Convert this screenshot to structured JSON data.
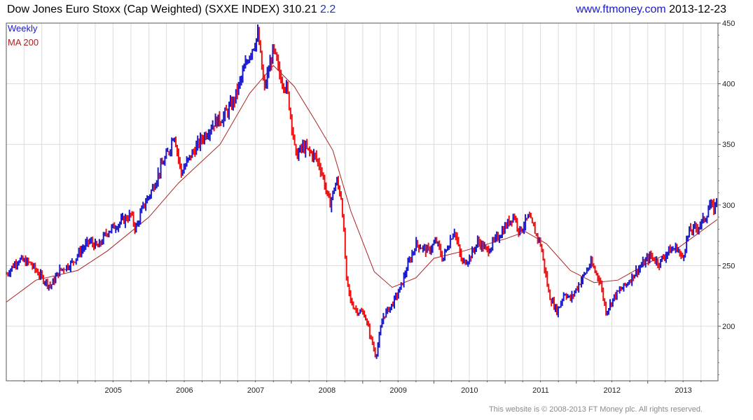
{
  "header": {
    "title": "Dow Jones Euro Stoxx (Cap Weighted)",
    "ticker": "(SXXE INDEX)",
    "last_price": "310.21",
    "change": "2.2",
    "site": "www.ftmoney.com",
    "date": "2013-12-23"
  },
  "footer": {
    "copyright": "This website is © 2008-2013 FT Money plc. All rights reserved."
  },
  "chart_data": {
    "type": "line",
    "title": "Dow Jones Euro Stoxx (Cap Weighted)  (SXXE INDEX) 310.21 2.2",
    "xlabel": "",
    "ylabel": "",
    "legend_position": "top-left",
    "grid": true,
    "x_tick_labels": [
      "2005",
      "2006",
      "2007",
      "2008",
      "2009",
      "2010",
      "2011",
      "2012",
      "2013"
    ],
    "y_tick_labels": [
      "200",
      "250",
      "300",
      "350",
      "400",
      "450"
    ],
    "ylim": [
      155,
      450
    ],
    "xlim": [
      "2004-01-01",
      "2013-12-27"
    ],
    "colors": {
      "up": "#1a1acc",
      "down": "#ee1111",
      "ma": "#aa2222",
      "grid": "#dcdcdc"
    },
    "series": [
      {
        "name": "Weekly",
        "x": [
          "2004-01-02",
          "2004-03-01",
          "2004-05-01",
          "2004-07-01",
          "2004-08-15",
          "2004-10-01",
          "2004-12-01",
          "2005-01-15",
          "2005-03-01",
          "2005-04-15",
          "2005-06-01",
          "2005-08-01",
          "2005-10-01",
          "2005-10-25",
          "2005-12-01",
          "2006-01-15",
          "2006-03-01",
          "2006-04-15",
          "2006-05-10",
          "2006-06-15",
          "2006-08-01",
          "2006-10-01",
          "2006-12-01",
          "2007-01-15",
          "2007-03-10",
          "2007-04-15",
          "2007-06-01",
          "2007-07-15",
          "2007-08-15",
          "2007-10-01",
          "2007-11-01",
          "2007-12-10",
          "2008-01-10",
          "2008-01-22",
          "2008-03-01",
          "2008-05-01",
          "2008-06-01",
          "2008-07-15",
          "2008-08-20",
          "2008-09-15",
          "2008-10-10",
          "2008-11-01",
          "2008-12-01",
          "2009-01-10",
          "2009-03-09",
          "2009-04-15",
          "2009-06-01",
          "2009-07-15",
          "2009-08-15",
          "2009-10-01",
          "2009-12-01",
          "2010-01-15",
          "2010-02-15",
          "2010-04-15",
          "2010-05-25",
          "2010-07-01",
          "2010-08-15",
          "2010-10-01",
          "2010-12-01",
          "2011-02-15",
          "2011-03-15",
          "2011-05-01",
          "2011-07-01",
          "2011-08-15",
          "2011-09-25",
          "2011-11-01",
          "2011-12-01",
          "2012-01-15",
          "2012-03-15",
          "2012-05-01",
          "2012-06-01",
          "2012-07-15",
          "2012-09-15",
          "2012-11-01",
          "2013-01-15",
          "2013-03-01",
          "2013-04-15",
          "2013-06-01",
          "2013-06-25",
          "2013-08-01",
          "2013-09-15",
          "2013-10-25",
          "2013-11-15",
          "2013-12-10",
          "2013-12-23"
        ],
        "values": [
          243,
          255,
          252,
          240,
          233,
          246,
          252,
          262,
          270,
          265,
          278,
          285,
          292,
          280,
          298,
          312,
          330,
          345,
          360,
          326,
          340,
          355,
          368,
          372,
          385,
          402,
          425,
          440,
          395,
          428,
          408,
          395,
          360,
          340,
          348,
          340,
          330,
          300,
          320,
          305,
          238,
          220,
          213,
          210,
          175,
          208,
          218,
          232,
          248,
          268,
          262,
          270,
          255,
          280,
          252,
          256,
          270,
          262,
          275,
          292,
          278,
          290,
          268,
          225,
          212,
          228,
          222,
          235,
          252,
          238,
          212,
          225,
          235,
          245,
          258,
          252,
          262,
          265,
          255,
          278,
          282,
          290,
          300,
          296,
          310
        ]
      },
      {
        "name": "MA 200",
        "x": [
          "2004-01-02",
          "2004-06-01",
          "2005-01-01",
          "2005-06-01",
          "2006-01-01",
          "2006-06-01",
          "2007-01-01",
          "2007-06-01",
          "2007-10-01",
          "2008-01-15",
          "2008-05-01",
          "2008-08-01",
          "2008-11-01",
          "2009-03-01",
          "2009-06-01",
          "2009-10-01",
          "2010-01-01",
          "2010-06-01",
          "2011-01-01",
          "2011-04-15",
          "2011-08-01",
          "2011-12-01",
          "2012-04-01",
          "2012-08-01",
          "2013-01-01",
          "2013-06-01",
          "2013-12-23"
        ],
        "values": [
          220,
          238,
          246,
          262,
          290,
          318,
          350,
          392,
          415,
          398,
          370,
          345,
          295,
          245,
          232,
          240,
          256,
          262,
          272,
          278,
          268,
          246,
          236,
          238,
          252,
          264,
          288
        ]
      }
    ]
  }
}
